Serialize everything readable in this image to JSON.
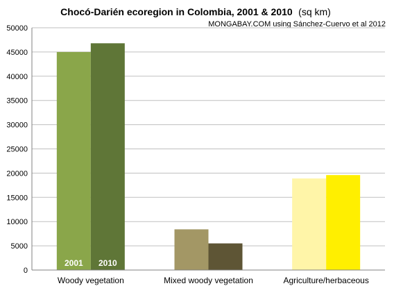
{
  "chart_data": {
    "type": "bar",
    "title": "Chocó-Darién ecoregion in Colombia, 2001 & 2010",
    "title_unit": "(sq km)",
    "credit": "MONGABAY.COM using Sánchez-Cuervo et al 2012",
    "categories": [
      "Woody vegetation",
      "Mixed woody vegetation",
      "Agriculture/herbaceous"
    ],
    "series": [
      {
        "name": "2001",
        "values": [
          45000,
          8400,
          18900
        ],
        "colors": [
          "#8aa64a",
          "#a39765",
          "#fff5a8"
        ]
      },
      {
        "name": "2010",
        "values": [
          46800,
          5500,
          19600
        ],
        "colors": [
          "#5f7637",
          "#5e5535",
          "#ffef00"
        ]
      }
    ],
    "ylim": [
      0,
      50000
    ],
    "yticks": [
      "0",
      "5000",
      "10000",
      "15000",
      "20000",
      "25000",
      "30000",
      "35000",
      "40000",
      "45000",
      "50000"
    ],
    "bar_labels": [
      "2001",
      "2010"
    ],
    "grid": true,
    "legend": "none"
  }
}
